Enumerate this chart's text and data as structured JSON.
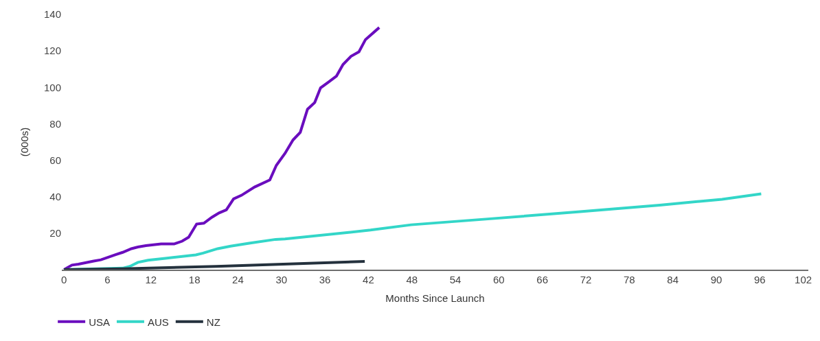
{
  "chart_data": {
    "type": "line",
    "xlabel": "Months Since Launch",
    "ylabel": "(000s)",
    "xlim": [
      -0.3,
      102.7
    ],
    "xticks": [
      0,
      6,
      12,
      18,
      24,
      30,
      36,
      42,
      48,
      54,
      60,
      66,
      72,
      78,
      84,
      90,
      96,
      102
    ],
    "ylim": [
      0,
      140
    ],
    "yticks": [
      20,
      40,
      60,
      80,
      100,
      120,
      140
    ],
    "legend": "bottom left",
    "marker": "none",
    "line_style": "solid",
    "series": [
      {
        "name": "USA",
        "color": "#6a0dbe",
        "x": [
          0,
          1.1,
          2,
          4.1,
          5.1,
          7.2,
          8.1,
          9.3,
          10.2,
          11.3,
          13.4,
          15.2,
          16.3,
          17.2,
          18.3,
          19.3,
          20.4,
          21.4,
          22.4,
          23.4,
          24.5,
          26.3,
          28.4,
          29.3,
          30.5,
          31.6,
          32.6,
          33.6,
          34.6,
          35.4,
          36.5,
          37.6,
          38.5,
          39.6,
          40.7,
          41.6,
          43.5
        ],
        "values": [
          0,
          2.5,
          3,
          4.7,
          5.4,
          8.3,
          9.5,
          11.5,
          12.4,
          13.2,
          14.1,
          14.1,
          15.6,
          17.8,
          25,
          25.5,
          28.7,
          31.1,
          32.8,
          38.8,
          40.8,
          45.3,
          49.2,
          57.2,
          63.8,
          71.1,
          75.3,
          88,
          91.7,
          99.7,
          102.9,
          106.2,
          112.5,
          117,
          119.5,
          126.2,
          132.8
        ]
      },
      {
        "name": "AUS",
        "color": "#33d6c8",
        "x": [
          0,
          8.1,
          9.1,
          10.2,
          11.6,
          14,
          18.2,
          19.2,
          21.2,
          23,
          25.7,
          29.2,
          30.5,
          42.3,
          47.9,
          58.8,
          71.2,
          82.2,
          90.8,
          93.5,
          96.2
        ],
        "values": [
          0,
          0.8,
          1.8,
          4,
          5.2,
          6.2,
          8.1,
          9.1,
          11.5,
          12.9,
          14.6,
          16.6,
          16.8,
          21.7,
          24.6,
          27.9,
          31.8,
          35.4,
          38.6,
          40.1,
          41.6
        ]
      },
      {
        "name": "NZ",
        "color": "#24313d",
        "x": [
          0,
          8,
          21,
          41.5
        ],
        "values": [
          0,
          0.5,
          1.8,
          4.5
        ]
      }
    ]
  }
}
